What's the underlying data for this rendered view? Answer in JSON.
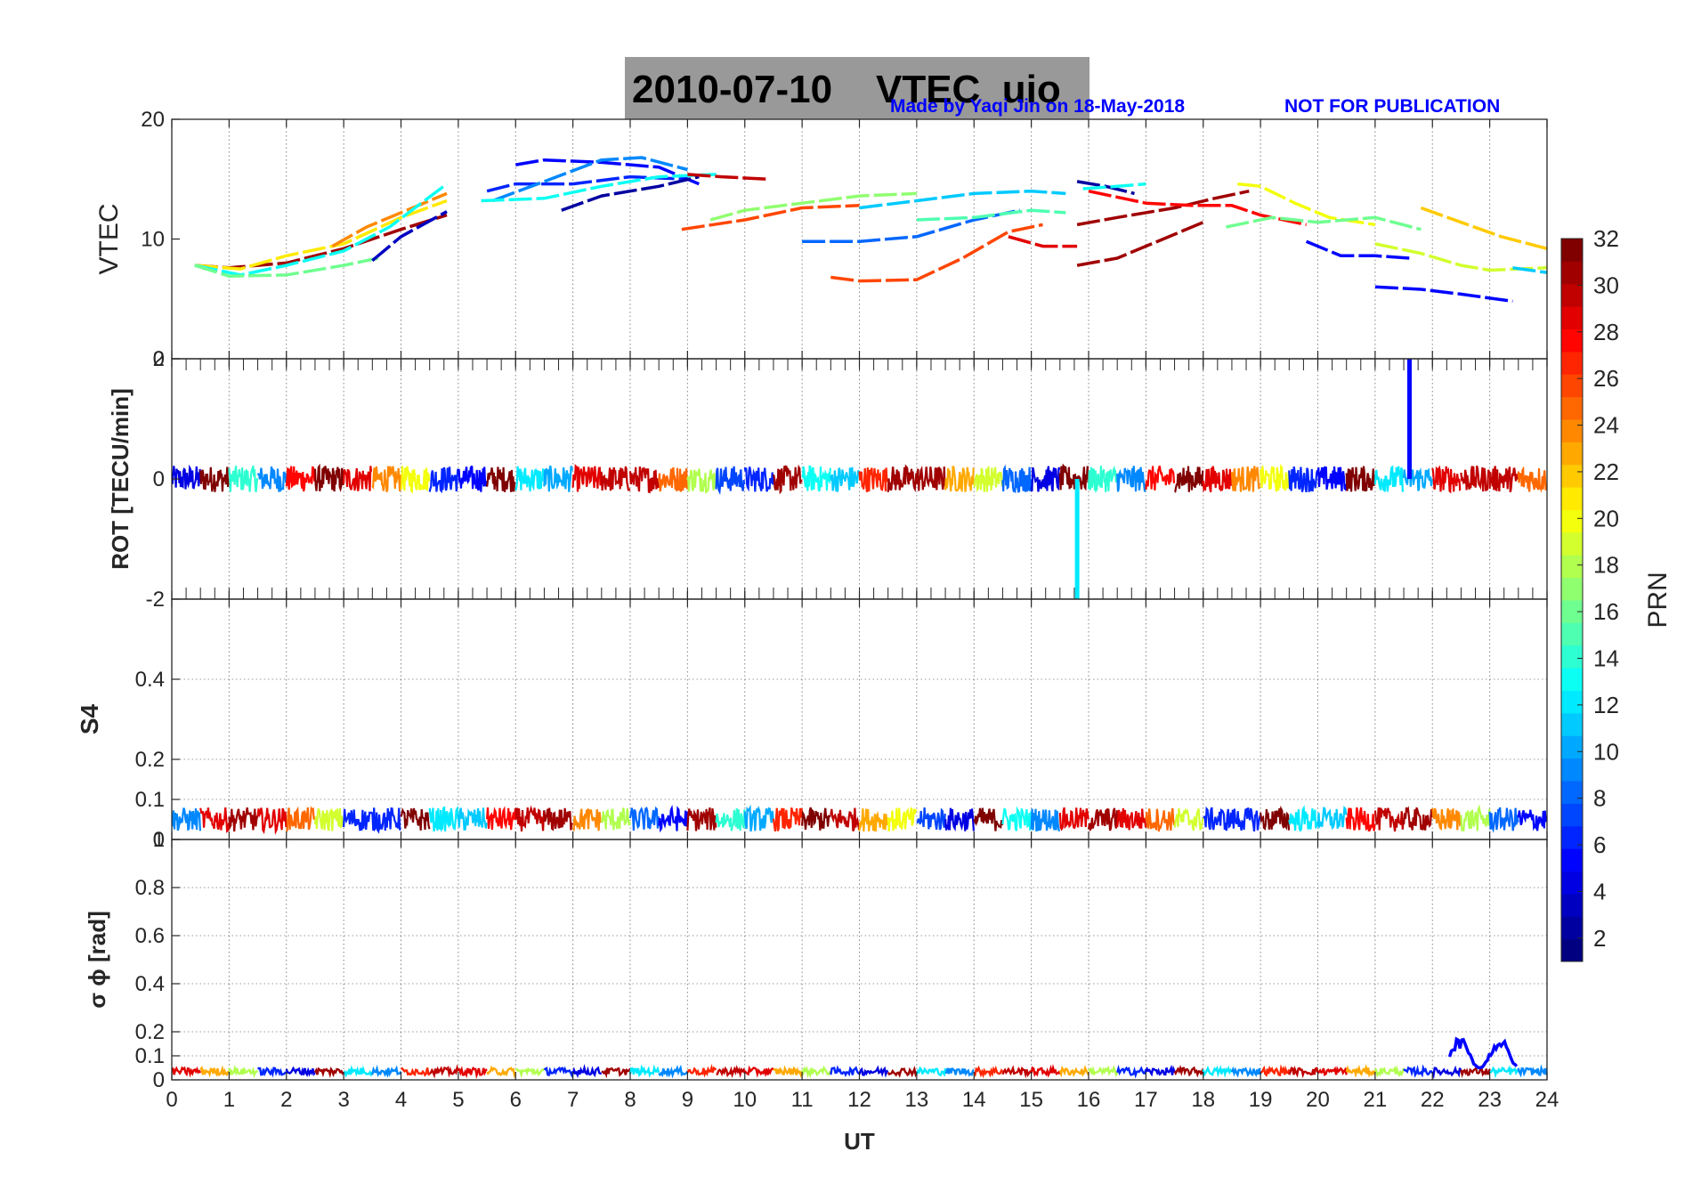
{
  "header": {
    "title": "2010-07-10    VTEC  uio",
    "credit": "Made by Yaqi Jin on 18-May-2018",
    "notice": "NOT FOR PUBLICATION"
  },
  "chart_data": [
    {
      "type": "line",
      "panel": "vtec",
      "ylabel": "VTEC",
      "ylim": [
        0,
        20
      ],
      "yticks": [
        "20",
        "10",
        "0"
      ],
      "grid": "vertical dotted",
      "series": [
        {
          "name": "PRN 31",
          "prn": 31,
          "x": [
            0.4,
            1.0,
            2.0,
            3.0,
            4.0,
            4.8
          ],
          "values": [
            7.8,
            7.6,
            8.0,
            9.2,
            10.8,
            12.0
          ]
        },
        {
          "name": "PRN 21",
          "prn": 21,
          "x": [
            0.4,
            1.2,
            2.0,
            3.0,
            4.0,
            4.8
          ],
          "values": [
            7.8,
            7.5,
            8.6,
            9.6,
            11.8,
            13.2
          ]
        },
        {
          "name": "PRN 24",
          "prn": 24,
          "x": [
            2.8,
            3.4,
            4.0,
            4.8
          ],
          "values": [
            9.4,
            11.0,
            12.2,
            13.8
          ]
        },
        {
          "name": "PRN 13",
          "prn": 13,
          "x": [
            0.4,
            1.2,
            2.0,
            3.0,
            3.8,
            4.8
          ],
          "values": [
            7.8,
            7.0,
            7.8,
            9.0,
            11.0,
            14.6
          ]
        },
        {
          "name": "PRN 16",
          "prn": 16,
          "x": [
            0.4,
            1.0,
            2.0,
            3.0,
            3.6
          ],
          "values": [
            7.8,
            6.9,
            7.0,
            7.8,
            8.4
          ]
        },
        {
          "name": "PRN 3",
          "prn": 3,
          "x": [
            3.5,
            4.0,
            4.8
          ],
          "values": [
            8.2,
            10.2,
            12.3
          ]
        },
        {
          "name": "PRN 6",
          "prn": 6,
          "x": [
            5.5,
            6.0,
            7.0,
            8.0,
            9.0
          ],
          "values": [
            14.0,
            14.6,
            14.6,
            15.2,
            15.0
          ]
        },
        {
          "name": "PRN 5",
          "prn": 5,
          "x": [
            6.0,
            6.5,
            7.5,
            8.5,
            9.2
          ],
          "values": [
            16.2,
            16.6,
            16.4,
            16.0,
            14.6
          ]
        },
        {
          "name": "PRN 9",
          "prn": 9,
          "x": [
            5.6,
            6.5,
            7.5,
            8.2,
            9.0
          ],
          "values": [
            13.2,
            14.8,
            16.6,
            16.8,
            15.8
          ]
        },
        {
          "name": "PRN 13",
          "prn": 13,
          "x": [
            5.4,
            6.5,
            7.5,
            8.5,
            9.5
          ],
          "values": [
            13.2,
            13.4,
            14.4,
            15.2,
            15.4
          ]
        },
        {
          "name": "PRN 2",
          "prn": 2,
          "x": [
            6.8,
            7.5,
            8.5,
            9.2
          ],
          "values": [
            12.4,
            13.6,
            14.4,
            15.2
          ]
        },
        {
          "name": "PRN 30",
          "prn": 30,
          "x": [
            9.0,
            9.6,
            10.4
          ],
          "values": [
            15.4,
            15.2,
            15.0
          ]
        },
        {
          "name": "PRN 26",
          "prn": 26,
          "x": [
            8.9,
            10.0,
            11.0,
            12.0
          ],
          "values": [
            10.8,
            11.6,
            12.6,
            12.8
          ]
        },
        {
          "name": "PRN 17",
          "prn": 17,
          "x": [
            9.4,
            10.0,
            11.0,
            12.0,
            13.0
          ],
          "values": [
            11.6,
            12.4,
            13.0,
            13.6,
            13.8
          ]
        },
        {
          "name": "PRN 26",
          "prn": 26,
          "x": [
            11.5,
            12.0,
            13.0,
            13.8,
            14.6,
            15.2
          ],
          "values": [
            6.8,
            6.5,
            6.6,
            8.4,
            10.6,
            11.2
          ]
        },
        {
          "name": "PRN 8",
          "prn": 8,
          "x": [
            11.0,
            12.0,
            13.0,
            14.0,
            14.8
          ],
          "values": [
            9.8,
            9.8,
            10.2,
            11.6,
            12.4
          ]
        },
        {
          "name": "PRN 11",
          "prn": 11,
          "x": [
            12.0,
            13.0,
            14.0,
            15.0,
            15.6
          ],
          "values": [
            12.6,
            13.2,
            13.8,
            14.0,
            13.8
          ]
        },
        {
          "name": "PRN 15",
          "prn": 15,
          "x": [
            13.0,
            14.0,
            15.0,
            15.6
          ],
          "values": [
            11.6,
            11.8,
            12.4,
            12.2
          ]
        },
        {
          "name": "PRN 29",
          "prn": 29,
          "x": [
            14.6,
            15.2,
            15.8
          ],
          "values": [
            10.2,
            9.4,
            9.4
          ]
        },
        {
          "name": "PRN 2",
          "prn": 2,
          "x": [
            15.8,
            16.3,
            16.8
          ],
          "values": [
            14.8,
            14.4,
            13.8
          ]
        },
        {
          "name": "PRN 31",
          "prn": 31,
          "x": [
            15.8,
            16.5,
            17.5,
            18.2,
            18.8
          ],
          "values": [
            11.2,
            11.8,
            12.6,
            13.4,
            14.0
          ]
        },
        {
          "name": "PRN 31",
          "prn": 31,
          "x": [
            15.8,
            16.5,
            17.2,
            18.0
          ],
          "values": [
            7.8,
            8.4,
            9.8,
            11.4
          ]
        },
        {
          "name": "PRN 13",
          "prn": 13,
          "x": [
            15.9,
            16.5,
            17.0
          ],
          "values": [
            14.2,
            14.4,
            14.6
          ]
        },
        {
          "name": "PRN 28",
          "prn": 28,
          "x": [
            16.0,
            17.0,
            17.8,
            18.5,
            19.0,
            19.8
          ],
          "values": [
            14.0,
            13.0,
            12.8,
            12.8,
            12.0,
            11.2
          ]
        },
        {
          "name": "PRN 20",
          "prn": 20,
          "x": [
            18.6,
            19.0,
            19.6,
            20.2,
            21.0
          ],
          "values": [
            14.6,
            14.4,
            13.0,
            11.8,
            11.2
          ]
        },
        {
          "name": "PRN 16",
          "prn": 16,
          "x": [
            18.4,
            19.2,
            20.0,
            21.0,
            21.8
          ],
          "values": [
            11.0,
            11.8,
            11.4,
            11.8,
            10.8
          ]
        },
        {
          "name": "PRN 19",
          "prn": 19,
          "x": [
            21.0,
            21.8,
            22.5,
            23.0,
            24.0
          ],
          "values": [
            9.6,
            8.8,
            7.8,
            7.4,
            7.6
          ]
        },
        {
          "name": "PRN 22",
          "prn": 22,
          "x": [
            21.8,
            22.5,
            23.2,
            24.0
          ],
          "values": [
            12.6,
            11.4,
            10.2,
            9.2
          ]
        },
        {
          "name": "PRN 5",
          "prn": 5,
          "x": [
            19.8,
            20.4,
            21.0,
            21.6
          ],
          "values": [
            9.8,
            8.6,
            8.6,
            8.4
          ]
        },
        {
          "name": "PRN 5",
          "prn": 5,
          "x": [
            21.0,
            21.8,
            22.5,
            23.4
          ],
          "values": [
            6.0,
            5.8,
            5.4,
            4.8
          ]
        },
        {
          "name": "PRN 11",
          "prn": 11,
          "x": [
            23.4,
            24.0
          ],
          "values": [
            7.6,
            7.2
          ]
        }
      ]
    },
    {
      "type": "line",
      "panel": "rot",
      "ylabel": "ROT [TECU/min]",
      "ylim": [
        -2,
        2
      ],
      "yticks": [
        "2",
        "0",
        "-2"
      ],
      "noise_band": [
        -0.2,
        0.2
      ],
      "spikes": [
        {
          "prn": 5,
          "x": 21.6,
          "from": 0,
          "to": 2
        },
        {
          "prn": 12,
          "x": 15.8,
          "from": 0,
          "to": -2
        }
      ]
    },
    {
      "type": "line",
      "panel": "s4",
      "ylabel": "S4",
      "ylim": [
        0,
        0.6
      ],
      "yticks": [
        "0.4",
        "0.2",
        "0.1",
        "0"
      ],
      "typical_range": [
        0.02,
        0.08
      ]
    },
    {
      "type": "line",
      "panel": "sigma_phi",
      "ylabel": "σ ϕ [rad]",
      "ylim": [
        0,
        1
      ],
      "yticks": [
        "1",
        "0.8",
        "0.6",
        "0.4",
        "0.2",
        "0.1",
        "0"
      ],
      "xlabel": "UT",
      "xlim": [
        0,
        24
      ],
      "xticks": [
        "0",
        "1",
        "2",
        "3",
        "4",
        "5",
        "6",
        "7",
        "8",
        "9",
        "10",
        "11",
        "12",
        "13",
        "14",
        "15",
        "16",
        "17",
        "18",
        "19",
        "20",
        "21",
        "22",
        "23",
        "24"
      ],
      "typical_range": [
        0.02,
        0.05
      ],
      "event": {
        "prn": 5,
        "x_start": 22.3,
        "x_end": 23.5,
        "peak": 0.18
      }
    },
    {
      "type": "colorbar",
      "label": "PRN",
      "range": [
        1,
        32
      ],
      "ticks": [
        "32",
        "30",
        "28",
        "26",
        "24",
        "22",
        "20",
        "18",
        "16",
        "14",
        "12",
        "10",
        "8",
        "6",
        "4",
        "2"
      ]
    }
  ]
}
